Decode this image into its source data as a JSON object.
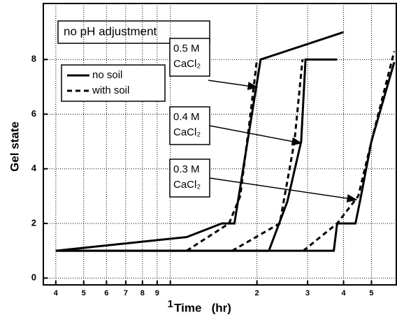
{
  "chart_data": {
    "type": "line",
    "title": "no pH adjustment",
    "x_label": "Time   (hr)",
    "y_label": "Gel state",
    "x_scale": "log",
    "xlim": [
      0.362,
      6.1
    ],
    "ylim": [
      -0.25,
      10.05
    ],
    "xticks": [
      {
        "value": 0.4,
        "label": "4"
      },
      {
        "value": 0.5,
        "label": "5"
      },
      {
        "value": 0.6,
        "label": "6"
      },
      {
        "value": 0.7,
        "label": "7"
      },
      {
        "value": 0.8,
        "label": "8"
      },
      {
        "value": 0.9,
        "label": "9"
      },
      1,
      2,
      3,
      4,
      5
    ],
    "yticks": [
      0,
      2,
      4,
      6,
      8
    ],
    "grid": true,
    "color": "#000000",
    "legend": [
      {
        "label": "no soil",
        "dash": false
      },
      {
        "label": "with soil",
        "dash": true
      }
    ],
    "annotations": [
      {
        "text": [
          "0.5 M",
          "CaCl₂"
        ]
      },
      {
        "text": [
          "0.4 M",
          "CaCl₂"
        ]
      },
      {
        "text": [
          "0.3 M",
          "CaCl₂"
        ]
      }
    ],
    "series": [
      {
        "dash": false,
        "x": [
          0.4,
          1.14,
          1.51,
          1.67,
          2.06,
          4.0
        ],
        "values": [
          1,
          1.5,
          2,
          2,
          8,
          9
        ]
      },
      {
        "dash": true,
        "x": [
          1.14,
          1.6,
          1.75,
          1.9,
          2.0
        ],
        "values": [
          1,
          2,
          3,
          6,
          8
        ]
      },
      {
        "dash": false,
        "x": [
          0.4,
          2.2,
          2.55,
          2.85,
          2.95,
          3.8
        ],
        "values": [
          1,
          1,
          2.8,
          5,
          8,
          8
        ]
      },
      {
        "dash": true,
        "x": [
          1.64,
          2.4,
          2.7,
          2.88
        ],
        "values": [
          1,
          2,
          5,
          8
        ]
      },
      {
        "dash": false,
        "x": [
          0.4,
          3.7,
          3.8,
          4.4,
          4.6,
          5.0,
          6.0
        ],
        "values": [
          1,
          1,
          2,
          2,
          3,
          5,
          7.9
        ]
      },
      {
        "dash": true,
        "x": [
          2.9,
          3.8,
          4.5,
          5.0,
          6.0
        ],
        "values": [
          1,
          2,
          3,
          5,
          8.3
        ]
      }
    ]
  }
}
